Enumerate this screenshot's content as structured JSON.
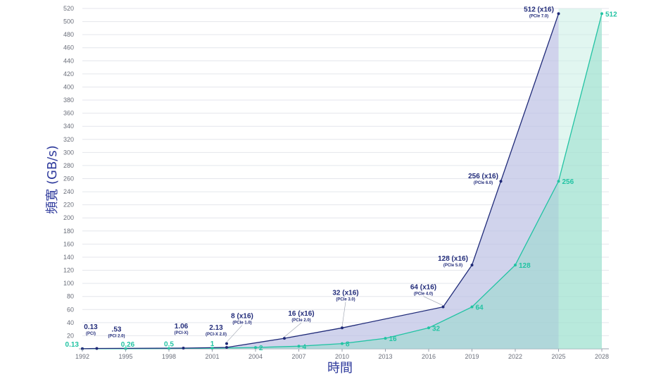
{
  "chart_data": {
    "type": "area",
    "xlabel": "時間",
    "ylabel": "頻寬 (GB/s)",
    "x_ticks": [
      "1992",
      "1995",
      "1998",
      "2001",
      "2004",
      "2007",
      "2010",
      "2013",
      "2016",
      "2019",
      "2022",
      "2025",
      "2028"
    ],
    "ylim": [
      0,
      520
    ],
    "y_ticks": [
      20,
      40,
      60,
      80,
      100,
      120,
      140,
      160,
      180,
      200,
      220,
      240,
      260,
      280,
      300,
      320,
      340,
      360,
      380,
      400,
      420,
      440,
      460,
      480,
      500,
      520
    ],
    "grid": true,
    "colors": {
      "navy_line": "#1f2a78",
      "navy_fill": "#bcc0e4",
      "green_line": "#22c3a3",
      "green_fill": "#8fdcc7",
      "projection_fill": "#c9efe3"
    },
    "series": [
      {
        "x": [
          1992,
          1993,
          1999,
          2002,
          2006,
          2010,
          2017,
          2019,
          2021,
          2025
        ],
        "values": [
          0.13,
          0.53,
          1.06,
          2.13,
          16,
          32,
          64,
          128,
          256,
          512
        ],
        "labels": [
          {
            "main": "0.13",
            "sub": "(PCI)"
          },
          {
            "main": ".53",
            "sub": "(PCI 2.0)"
          },
          {
            "main": "1.06",
            "sub": "(PCI-X)"
          },
          {
            "main": "2.13",
            "sub": "(PCI-X 2.0)"
          },
          {
            "main": "16 (x16)",
            "sub": "(PCIe 2.0)"
          },
          {
            "main": "32 (x16)",
            "sub": "(PCIe 3.0)"
          },
          {
            "main": "64 (x16)",
            "sub": "(PCIe 4.0)"
          },
          {
            "main": "128 (x16)",
            "sub": "(PCIe 5.0)"
          },
          {
            "main": "256 (x16)",
            "sub": "(PCIe 6.0)"
          },
          {
            "main": "512 (x16)",
            "sub": "(PCIe 7.0)"
          }
        ]
      },
      {
        "x": [
          1992,
          1995,
          1998,
          2001,
          2004,
          2007,
          2010,
          2013,
          2016,
          2019,
          2022,
          2025,
          2028
        ],
        "values": [
          0.13,
          0.26,
          0.5,
          1,
          2,
          4,
          8,
          16,
          32,
          64,
          128,
          256,
          512
        ],
        "labels": [
          "0.13",
          "0.26",
          "0.5",
          "1",
          "2",
          "4",
          "8",
          "16",
          "32",
          "64",
          "128",
          "256",
          "512"
        ]
      }
    ],
    "extra_label": {
      "main": "8 (x16)",
      "sub": "(PCIe 1.0)",
      "x": 2002,
      "y": 8
    }
  }
}
